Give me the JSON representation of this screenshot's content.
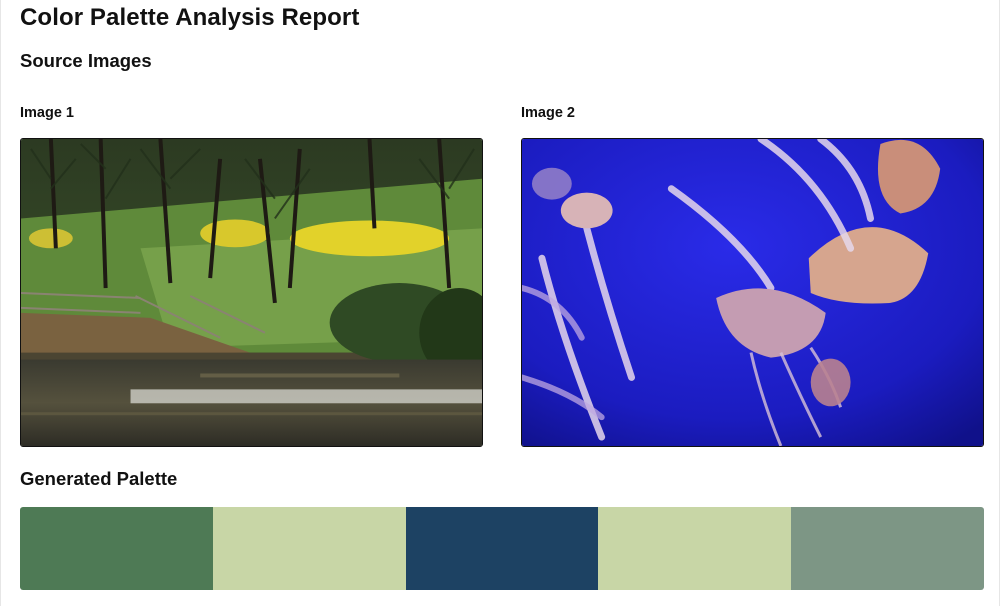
{
  "page": {
    "title": "Color Palette Analysis Report"
  },
  "source_section": {
    "heading": "Source Images",
    "images": [
      {
        "label": "Image 1",
        "subject": "park-lake-photo"
      },
      {
        "label": "Image 2",
        "subject": "jellyfish-photo"
      }
    ]
  },
  "palette_section": {
    "heading": "Generated Palette",
    "colors": [
      "#4E7A55",
      "#C8D6A6",
      "#1D4263",
      "#C8D6A6",
      "#7D9685"
    ]
  }
}
